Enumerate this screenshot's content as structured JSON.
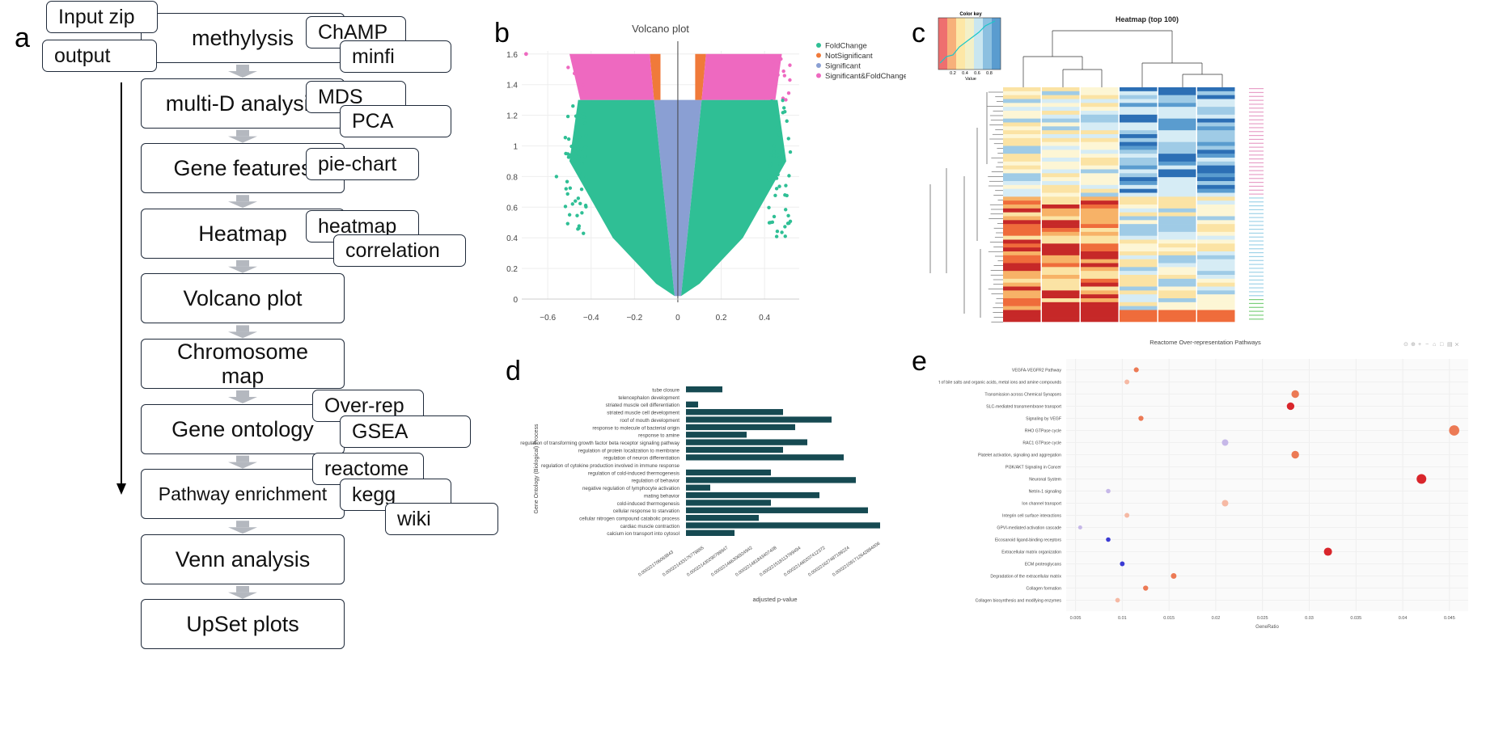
{
  "panel_a": {
    "letter": "a",
    "top_tags": [
      "Input zip",
      "output"
    ],
    "steps": [
      {
        "label": "methylysis",
        "tags": [
          "ChAMP",
          "minfi"
        ]
      },
      {
        "label": "multi-D analysis",
        "tags": [
          "MDS",
          "PCA"
        ]
      },
      {
        "label": "Gene features",
        "tags": [
          "pie-chart"
        ]
      },
      {
        "label": "Heatmap",
        "tags": [
          "heatmap",
          "correlation"
        ]
      },
      {
        "label": "Volcano plot",
        "tags": []
      },
      {
        "label": "Chromosome map",
        "tags": []
      },
      {
        "label": "Gene ontology",
        "tags": [
          "Over-rep",
          "GSEA"
        ]
      },
      {
        "label": "Pathway enrichment",
        "tags": [
          "reactome",
          "kegg",
          "wiki"
        ]
      },
      {
        "label": "Venn analysis",
        "tags": []
      },
      {
        "label": "UpSet plots",
        "tags": []
      }
    ]
  },
  "panel_b": {
    "letter": "b",
    "chart_data": {
      "type": "scatter",
      "title": "Volcano plot",
      "xlim": [
        -0.72,
        0.56
      ],
      "ylim": [
        0,
        1.62
      ],
      "x_ticks": [
        "−0.6",
        "−0.4",
        "−0.2",
        "0",
        "0.2",
        "0.4"
      ],
      "x_tick_values": [
        -0.6,
        -0.4,
        -0.2,
        0,
        0.2,
        0.4
      ],
      "y_ticks": [
        "0",
        "0.2",
        "0.4",
        "0.6",
        "0.8",
        "1",
        "1.2",
        "1.4",
        "1.6"
      ],
      "y_tick_values": [
        0,
        0.2,
        0.4,
        0.6,
        0.8,
        1.0,
        1.2,
        1.4,
        1.6
      ],
      "legend": [
        {
          "name": "FoldChange",
          "color": "#2fbf95"
        },
        {
          "name": "NotSignificant",
          "color": "#f07a3a"
        },
        {
          "name": "Significant",
          "color": "#8a9fd3"
        },
        {
          "name": "Significant&FoldChange",
          "color": "#ee69c0"
        }
      ],
      "legend_position": "top-right",
      "significance_threshold_y": 1.3,
      "foldchange_threshold_x": 0.1
    }
  },
  "panel_c": {
    "letter": "c",
    "title": "Heatmap (top 100)",
    "color_key": {
      "title": "Color key",
      "ticks": [
        "0.2",
        "0.4",
        "0.6",
        "0.8"
      ],
      "xlabel": "Value"
    },
    "colors": [
      "#c62828",
      "#ef6c3b",
      "#f7b267",
      "#fbe3a4",
      "#fdf6d5",
      "#d6ecf5",
      "#9fcbe6",
      "#5a9ccf",
      "#2c6fb5"
    ]
  },
  "panel_d": {
    "letter": "d",
    "chart_data": {
      "type": "bar",
      "orientation": "horizontal",
      "xlabel": "adjusted p-value",
      "ylabel": "Gene Ontology (Biological) Process",
      "color": "#164a52",
      "categories": [
        "tube closure",
        "telencephalon development",
        "striated muscle cell differentiation",
        "striated muscle cell development",
        "roof of mouth development",
        "response to molecule of bacterial origin",
        "response to amine",
        "regulation of transforming growth factor beta receptor signaling pathway",
        "regulation of protein localization to membrane",
        "regulation of neuron differentiation",
        "regulation of cytokine production involved in immune response",
        "regulation of cold-induced thermogenesis",
        "regulation of behavior",
        "negative regulation of lymphocyte activation",
        "mating behavior",
        "cold-induced thermogenesis",
        "cellular response to starvation",
        "cellular nitrogen compound catabolic process",
        "cardiac muscle contraction",
        "calcium ion transport into cytosol"
      ],
      "values": [
        0.3,
        0,
        0.1,
        0.8,
        1.2,
        0.9,
        0.5,
        1.0,
        0.8,
        1.3,
        0,
        0.7,
        1.4,
        0.2,
        1.1,
        0.7,
        1.5,
        0.6,
        1.6,
        0.4
      ],
      "x_ticks": [
        "0.000221706063843",
        "0.000221433175779855",
        "0.000221430290799947",
        "0.000221466306924942",
        "0.000221481843407408",
        "0.000221518113769494",
        "0.000221460207412372",
        "0.000221627487199224",
        "0.000221091712642894006"
      ]
    }
  },
  "panel_e": {
    "letter": "e",
    "chart_data": {
      "type": "scatter",
      "title": "Reactome Over-representation Pathways",
      "xlabel": "GeneRatio",
      "x_ticks": [
        "0.005",
        "0.01",
        "0.015",
        "0.02",
        "0.025",
        "0.03",
        "0.035",
        "0.04",
        "0.045"
      ],
      "xlim": [
        0.004,
        0.047
      ],
      "pathways": [
        "VEGFA-VEGFR2 Pathway",
        "Transport of bile salts and organic acids, metal ions and amine compounds",
        "Transmission across Chemical Synapses",
        "SLC-mediated transmembrane transport",
        "Signaling by VEGF",
        "RHO GTPase cycle",
        "RAC1 GTPase cycle",
        "Platelet activation, signaling and aggregation",
        "PI3K/AKT Signaling in Cancer",
        "Neuronal System",
        "Netrin-1 signaling",
        "Ion channel transport",
        "Integrin cell surface interactions",
        "GPVI-mediated activation cascade",
        "Eicosanoid ligand-binding receptors",
        "Extracellular matrix organization",
        "ECM proteoglycans",
        "Degradation of the extracellular matrix",
        "Collagen formation",
        "Collagen biosynthesis and modifying enzymes"
      ],
      "gene_ratio": [
        0.0115,
        0.0105,
        0.0285,
        0.028,
        0.012,
        0.0455,
        0.021,
        0.0285,
        null,
        0.042,
        0.0085,
        0.021,
        0.0105,
        0.0055,
        0.0085,
        0.032,
        0.01,
        0.0155,
        0.0125,
        0.0095
      ],
      "significance": [
        0.6,
        0.3,
        0.6,
        0.9,
        0.7,
        0.8,
        0.2,
        0.6,
        null,
        0.95,
        0.15,
        0.3,
        0.3,
        0.1,
        0.0,
        0.95,
        0.0,
        0.75,
        0.8,
        0.5
      ]
    }
  }
}
